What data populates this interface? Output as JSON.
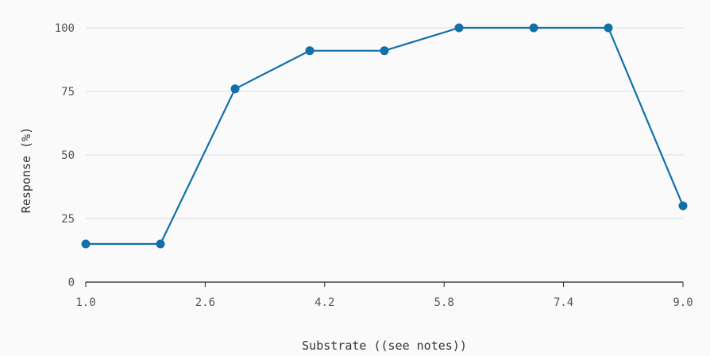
{
  "chart_data": {
    "type": "line",
    "xlabel": "Substrate ((see notes))",
    "ylabel": "Response (%)",
    "xlim": [
      1.0,
      9.0
    ],
    "ylim": [
      0,
      100
    ],
    "x_ticks": [
      "1.0",
      "2.6",
      "4.2",
      "5.8",
      "7.4",
      "9.0"
    ],
    "y_ticks": [
      "0",
      "25",
      "50",
      "75",
      "100"
    ],
    "grid": "horizontal",
    "series": [
      {
        "color": "#1170aa",
        "points": [
          {
            "x": 1.0,
            "y": 15
          },
          {
            "x": 2.0,
            "y": 15
          },
          {
            "x": 3.0,
            "y": 76
          },
          {
            "x": 4.0,
            "y": 91
          },
          {
            "x": 5.0,
            "y": 91
          },
          {
            "x": 6.0,
            "y": 100
          },
          {
            "x": 7.0,
            "y": 100
          },
          {
            "x": 8.0,
            "y": 100
          },
          {
            "x": 9.0,
            "y": 30
          }
        ]
      }
    ]
  }
}
